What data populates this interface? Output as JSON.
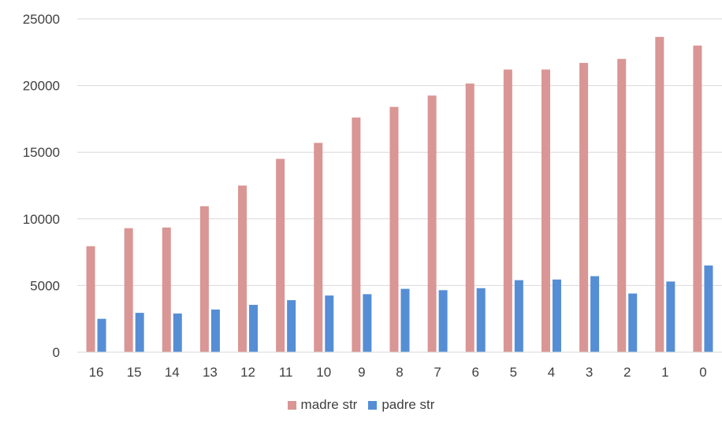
{
  "chart_data": {
    "type": "bar",
    "title": "",
    "xlabel": "",
    "ylabel": "",
    "categories": [
      "16",
      "15",
      "14",
      "13",
      "12",
      "11",
      "10",
      "9",
      "8",
      "7",
      "6",
      "5",
      "4",
      "3",
      "2",
      "1",
      "0"
    ],
    "series": [
      {
        "name": "madre str",
        "color": "#D99694",
        "values": [
          7950,
          9300,
          9350,
          10950,
          12500,
          14500,
          15700,
          17600,
          18400,
          19250,
          20150,
          21200,
          21200,
          21700,
          22000,
          23650,
          23000
        ]
      },
      {
        "name": "padre str",
        "color": "#558ED5",
        "values": [
          2500,
          2950,
          2900,
          3200,
          3550,
          3900,
          4250,
          4350,
          4750,
          4650,
          4800,
          5400,
          5450,
          5700,
          4400,
          5300,
          6500
        ]
      }
    ],
    "ylim": [
      0,
      25000
    ],
    "yticks": [
      0,
      5000,
      10000,
      15000,
      20000,
      25000
    ],
    "grid": true,
    "legend_position": "bottom"
  }
}
